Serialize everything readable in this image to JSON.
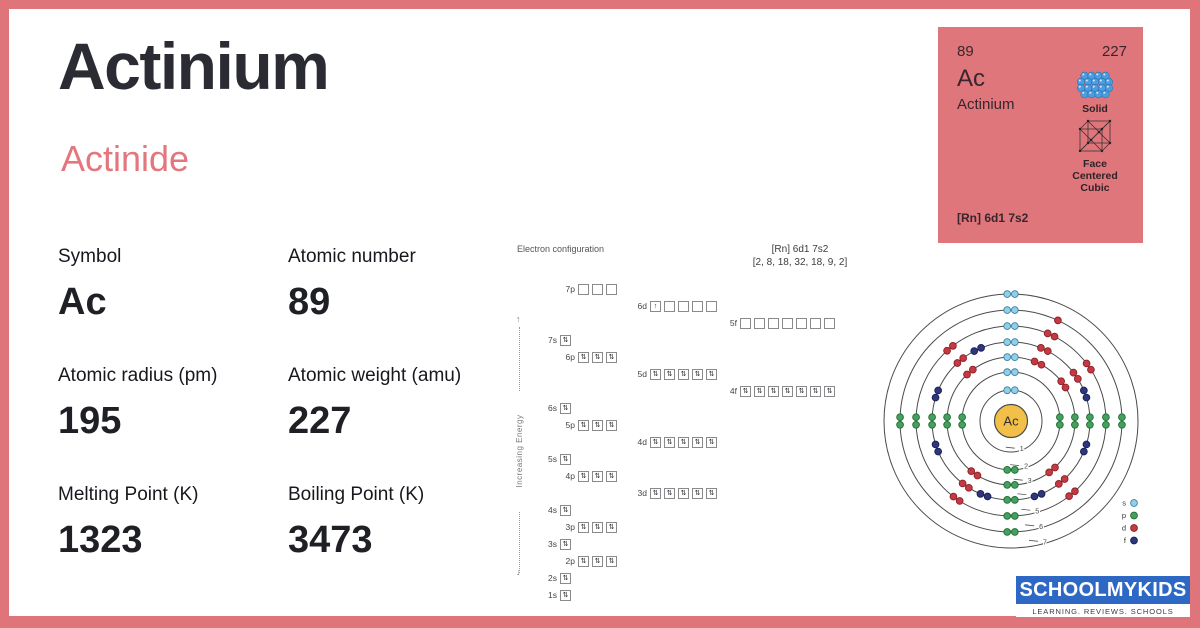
{
  "colors": {
    "frame": "#e0747b",
    "card_bg": "#df767c",
    "accent_text": "#e4767d",
    "logo_bg": "#2d68c4",
    "nucleus": "#f2bf49",
    "solid_icon": "#4a9de0",
    "ring_stroke": "#4a4a4a"
  },
  "header": {
    "title": "Actinium",
    "category": "Actinide"
  },
  "stats": [
    {
      "label": "Symbol",
      "value": "Ac"
    },
    {
      "label": "Atomic number",
      "value": "89"
    },
    {
      "label": "Atomic radius (pm)",
      "value": "195"
    },
    {
      "label": "Atomic weight (amu)",
      "value": "227"
    },
    {
      "label": "Melting Point (K)",
      "value": "1323"
    },
    {
      "label": "Boiling Point (K)",
      "value": "3473"
    }
  ],
  "element_card": {
    "atomic_number": "89",
    "atomic_weight": "227",
    "symbol": "Ac",
    "name": "Actinium",
    "state": "Solid",
    "crystal_structure": "Face Centered Cubic",
    "electron_config": "[Rn] 6d1 7s2"
  },
  "electron_configuration": {
    "heading": "Electron configuration",
    "config_text": "[Rn] 6d1 7s2",
    "shells_text": "[2, 8, 18, 32, 18, 9, 2]",
    "energy_axis_label": "Increasing Energy",
    "orbitals": [
      {
        "label": "7p",
        "type": "p",
        "boxes": [
          0,
          0,
          0
        ]
      },
      {
        "label": "6d",
        "type": "d",
        "boxes": [
          1,
          0,
          0,
          0,
          0
        ]
      },
      {
        "label": "5f",
        "type": "f",
        "boxes": [
          0,
          0,
          0,
          0,
          0,
          0,
          0
        ]
      },
      {
        "label": "7s",
        "type": "s",
        "boxes": [
          2
        ]
      },
      {
        "label": "6p",
        "type": "p",
        "boxes": [
          2,
          2,
          2
        ]
      },
      {
        "label": "5d",
        "type": "d",
        "boxes": [
          2,
          2,
          2,
          2,
          2
        ]
      },
      {
        "label": "4f",
        "type": "f",
        "boxes": [
          2,
          2,
          2,
          2,
          2,
          2,
          2
        ]
      },
      {
        "label": "6s",
        "type": "s",
        "boxes": [
          2
        ]
      },
      {
        "label": "5p",
        "type": "p",
        "boxes": [
          2,
          2,
          2
        ]
      },
      {
        "label": "4d",
        "type": "d",
        "boxes": [
          2,
          2,
          2,
          2,
          2
        ]
      },
      {
        "label": "5s",
        "type": "s",
        "boxes": [
          2
        ]
      },
      {
        "label": "4p",
        "type": "p",
        "boxes": [
          2,
          2,
          2
        ]
      },
      {
        "label": "3d",
        "type": "d",
        "boxes": [
          2,
          2,
          2,
          2,
          2
        ]
      },
      {
        "label": "4s",
        "type": "s",
        "boxes": [
          2
        ]
      },
      {
        "label": "3p",
        "type": "p",
        "boxes": [
          2,
          2,
          2
        ]
      },
      {
        "label": "3s",
        "type": "s",
        "boxes": [
          2
        ]
      },
      {
        "label": "2p",
        "type": "p",
        "boxes": [
          2,
          2,
          2
        ]
      },
      {
        "label": "2s",
        "type": "s",
        "boxes": [
          2
        ]
      },
      {
        "label": "1s",
        "type": "s",
        "boxes": [
          2
        ]
      }
    ]
  },
  "bohr_model": {
    "nucleus_label": "Ac",
    "shells": [
      2,
      8,
      18,
      32,
      18,
      9,
      2
    ],
    "ring_labels": [
      "1",
      "2",
      "3",
      "4",
      "5",
      "6",
      "7"
    ],
    "legend": [
      {
        "label": "s",
        "color": "#8fd0e8",
        "stroke": "#41809c"
      },
      {
        "label": "p",
        "color": "#44a05c",
        "stroke": "#1e6e35"
      },
      {
        "label": "d",
        "color": "#c43a42",
        "stroke": "#8c1f28"
      },
      {
        "label": "f",
        "color": "#2e3680",
        "stroke": "#181f4f"
      }
    ]
  },
  "logo": {
    "text": "SCHOOLMYKIDS",
    "tagline": "LEARNING. REVIEWS. SCHOOLS"
  }
}
